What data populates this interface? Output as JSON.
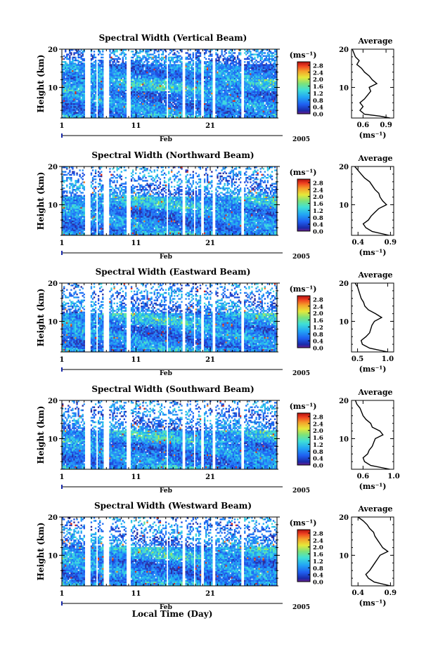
{
  "figure": {
    "xlabel": "Local Time (Day)"
  },
  "chart_data": [
    {
      "type": "heatmap",
      "title": "Spectral Width (Vertical Beam)",
      "ylabel": "Height (km)",
      "ylim": [
        2,
        20
      ],
      "yticks": [
        10,
        20
      ],
      "x_ticks": [
        "1",
        "11",
        "21"
      ],
      "x_unit_label": "Feb",
      "year_label": "2005",
      "colorbar": {
        "unit": "(ms⁻¹)",
        "ticks": [
          "0.0",
          "0.4",
          "0.8",
          "1.2",
          "1.6",
          "2.0",
          "2.4",
          "2.8"
        ],
        "range": [
          0,
          3.0
        ]
      },
      "profile": {
        "title": "Average",
        "xticks": [
          "0.6",
          "0.9"
        ],
        "xlim": [
          0.45,
          1.0
        ],
        "yticks": [
          "10",
          "20"
        ],
        "ylim": [
          2,
          20
        ],
        "xlabel": "(ms⁻¹)",
        "points": [
          [
            0.95,
            2
          ],
          [
            0.82,
            2.5
          ],
          [
            0.62,
            3
          ],
          [
            0.56,
            4
          ],
          [
            0.6,
            5
          ],
          [
            0.56,
            6
          ],
          [
            0.62,
            7
          ],
          [
            0.66,
            8
          ],
          [
            0.7,
            9
          ],
          [
            0.68,
            10
          ],
          [
            0.78,
            11
          ],
          [
            0.72,
            12
          ],
          [
            0.68,
            13
          ],
          [
            0.62,
            14
          ],
          [
            0.58,
            15
          ],
          [
            0.52,
            16
          ],
          [
            0.55,
            17
          ],
          [
            0.5,
            18
          ],
          [
            0.48,
            19
          ],
          [
            0.46,
            20
          ]
        ]
      }
    },
    {
      "type": "heatmap",
      "title": "Spectral Width (Northward Beam)",
      "ylabel": "Height (km)",
      "ylim": [
        2,
        20
      ],
      "yticks": [
        10,
        20
      ],
      "x_ticks": [
        "1",
        "11",
        "21"
      ],
      "x_unit_label": "Feb",
      "year_label": "2005",
      "colorbar": {
        "unit": "(ms⁻¹)",
        "ticks": [
          "0.0",
          "0.4",
          "0.8",
          "1.2",
          "1.6",
          "2.0",
          "2.4",
          "2.8"
        ],
        "range": [
          0,
          3.0
        ]
      },
      "profile": {
        "title": "Average",
        "xticks": [
          "0.4",
          "0.9"
        ],
        "xlim": [
          0.3,
          0.95
        ],
        "yticks": [
          "10",
          "20"
        ],
        "ylim": [
          2,
          20
        ],
        "xlabel": "(ms⁻¹)",
        "points": [
          [
            0.88,
            2
          ],
          [
            0.62,
            3
          ],
          [
            0.52,
            4
          ],
          [
            0.48,
            5
          ],
          [
            0.56,
            6
          ],
          [
            0.6,
            7
          ],
          [
            0.66,
            8
          ],
          [
            0.72,
            9
          ],
          [
            0.84,
            10
          ],
          [
            0.78,
            11
          ],
          [
            0.74,
            12
          ],
          [
            0.72,
            13
          ],
          [
            0.66,
            14
          ],
          [
            0.62,
            15
          ],
          [
            0.58,
            16
          ],
          [
            0.5,
            17
          ],
          [
            0.45,
            18
          ],
          [
            0.4,
            19
          ],
          [
            0.35,
            20
          ]
        ]
      }
    },
    {
      "type": "heatmap",
      "title": "Spectral Width (Eastward Beam)",
      "ylabel": "Height (km)",
      "ylim": [
        2,
        20
      ],
      "yticks": [
        10,
        20
      ],
      "x_ticks": [
        "1",
        "11",
        "21"
      ],
      "x_unit_label": "Feb",
      "year_label": "2005",
      "colorbar": {
        "unit": "(ms⁻¹)",
        "ticks": [
          "0.0",
          "0.4",
          "0.8",
          "1.2",
          "1.6",
          "2.0",
          "2.4",
          "2.8"
        ],
        "range": [
          0,
          3.0
        ]
      },
      "profile": {
        "title": "Average",
        "xticks": [
          "0.5",
          "1.0"
        ],
        "xlim": [
          0.4,
          1.1
        ],
        "yticks": [
          "10",
          "20"
        ],
        "ylim": [
          2,
          20
        ],
        "xlabel": "(ms⁻¹)",
        "points": [
          [
            1.0,
            2
          ],
          [
            0.7,
            3
          ],
          [
            0.58,
            4
          ],
          [
            0.56,
            5
          ],
          [
            0.64,
            6
          ],
          [
            0.7,
            7
          ],
          [
            0.72,
            8
          ],
          [
            0.74,
            9
          ],
          [
            0.78,
            10
          ],
          [
            0.9,
            11
          ],
          [
            0.8,
            12
          ],
          [
            0.68,
            13
          ],
          [
            0.62,
            14
          ],
          [
            0.6,
            15
          ],
          [
            0.56,
            16
          ],
          [
            0.54,
            17
          ],
          [
            0.52,
            18
          ],
          [
            0.5,
            19
          ],
          [
            0.46,
            20
          ]
        ]
      }
    },
    {
      "type": "heatmap",
      "title": "Spectral Width (Southward Beam)",
      "ylabel": "Height (km)",
      "ylim": [
        2,
        20
      ],
      "yticks": [
        10,
        20
      ],
      "x_ticks": [
        "1",
        "11",
        "21"
      ],
      "x_unit_label": "Feb",
      "year_label": "2005",
      "colorbar": {
        "unit": "(ms⁻¹)",
        "ticks": [
          "0.0",
          "0.4",
          "0.8",
          "1.2",
          "1.6",
          "2.0",
          "2.4",
          "2.8"
        ],
        "range": [
          0,
          3.0
        ]
      },
      "profile": {
        "title": "Average",
        "xticks": [
          "0.6",
          "1.0"
        ],
        "xlim": [
          0.45,
          1.0
        ],
        "yticks": [
          "10",
          "20"
        ],
        "ylim": [
          2,
          20
        ],
        "xlabel": "(ms⁻¹)",
        "points": [
          [
            0.95,
            2
          ],
          [
            0.7,
            3
          ],
          [
            0.62,
            4
          ],
          [
            0.6,
            5
          ],
          [
            0.66,
            6
          ],
          [
            0.68,
            7
          ],
          [
            0.72,
            8
          ],
          [
            0.74,
            9
          ],
          [
            0.76,
            10
          ],
          [
            0.86,
            11
          ],
          [
            0.82,
            12
          ],
          [
            0.72,
            13
          ],
          [
            0.7,
            14
          ],
          [
            0.64,
            15
          ],
          [
            0.6,
            16
          ],
          [
            0.58,
            17
          ],
          [
            0.56,
            18
          ],
          [
            0.52,
            19
          ],
          [
            0.5,
            20
          ]
        ]
      }
    },
    {
      "type": "heatmap",
      "title": "Spectral Width (Westward Beam)",
      "ylabel": "Height (km)",
      "ylim": [
        2,
        20
      ],
      "yticks": [
        10,
        20
      ],
      "x_ticks": [
        "1",
        "11",
        "21"
      ],
      "x_unit_label": "Feb",
      "year_label": "2005",
      "colorbar": {
        "unit": "(ms⁻¹)",
        "ticks": [
          "0.0",
          "0.4",
          "0.8",
          "1.2",
          "1.6",
          "2.0",
          "2.4",
          "2.8"
        ],
        "range": [
          0,
          3.0
        ]
      },
      "profile": {
        "title": "Average",
        "xticks": [
          "0.4",
          "0.9"
        ],
        "xlim": [
          0.3,
          0.95
        ],
        "yticks": [
          "10",
          "20"
        ],
        "ylim": [
          2,
          20
        ],
        "xlabel": "(ms⁻¹)",
        "points": [
          [
            0.9,
            2
          ],
          [
            0.65,
            3
          ],
          [
            0.56,
            4
          ],
          [
            0.52,
            5
          ],
          [
            0.58,
            6
          ],
          [
            0.62,
            7
          ],
          [
            0.66,
            8
          ],
          [
            0.7,
            9
          ],
          [
            0.74,
            10
          ],
          [
            0.86,
            11
          ],
          [
            0.78,
            12
          ],
          [
            0.74,
            13
          ],
          [
            0.7,
            14
          ],
          [
            0.66,
            15
          ],
          [
            0.64,
            16
          ],
          [
            0.58,
            17
          ],
          [
            0.54,
            18
          ],
          [
            0.48,
            19
          ],
          [
            0.4,
            20
          ]
        ]
      }
    }
  ]
}
